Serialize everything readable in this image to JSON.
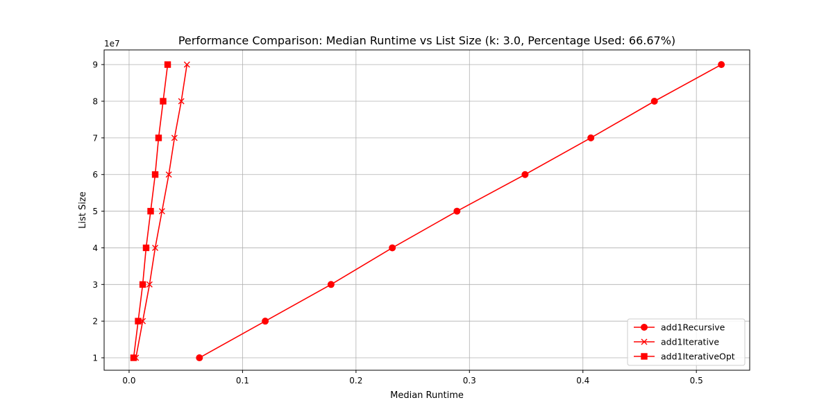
{
  "chart_data": {
    "type": "line",
    "title": "Performance Comparison: Median Runtime vs List Size (k: 3.0, Percentage Used: 66.67%)",
    "xlabel": "Median Runtime",
    "ylabel": "List Size",
    "y_scale_label": "1e7",
    "xlim": [
      -0.022,
      0.547
    ],
    "ylim": [
      6600000,
      94000000
    ],
    "xticks": [
      0.0,
      0.1,
      0.2,
      0.3,
      0.4,
      0.5
    ],
    "xtick_labels": [
      "0.0",
      "0.1",
      "0.2",
      "0.3",
      "0.4",
      "0.5"
    ],
    "yticks": [
      10000000,
      20000000,
      30000000,
      40000000,
      50000000,
      60000000,
      70000000,
      80000000,
      90000000
    ],
    "ytick_labels": [
      "1",
      "2",
      "3",
      "4",
      "5",
      "6",
      "7",
      "8",
      "9"
    ],
    "grid": true,
    "legend_position": "lower-right",
    "series": [
      {
        "name": "add1Recursive",
        "marker": "circle",
        "color": "#ff0000",
        "x": [
          0.062,
          0.12,
          0.178,
          0.232,
          0.289,
          0.349,
          0.407,
          0.463,
          0.522
        ],
        "y": [
          10000000,
          20000000,
          30000000,
          40000000,
          50000000,
          60000000,
          70000000,
          80000000,
          90000000
        ]
      },
      {
        "name": "add1Iterative",
        "marker": "x",
        "color": "#ff0000",
        "x": [
          0.006,
          0.012,
          0.018,
          0.023,
          0.029,
          0.035,
          0.04,
          0.046,
          0.051
        ],
        "y": [
          10000000,
          20000000,
          30000000,
          40000000,
          50000000,
          60000000,
          70000000,
          80000000,
          90000000
        ]
      },
      {
        "name": "add1IterativeOpt",
        "marker": "square",
        "color": "#ff0000",
        "x": [
          0.004,
          0.008,
          0.012,
          0.015,
          0.019,
          0.023,
          0.026,
          0.03,
          0.034
        ],
        "y": [
          10000000,
          20000000,
          30000000,
          40000000,
          50000000,
          60000000,
          70000000,
          80000000,
          90000000
        ]
      }
    ]
  }
}
